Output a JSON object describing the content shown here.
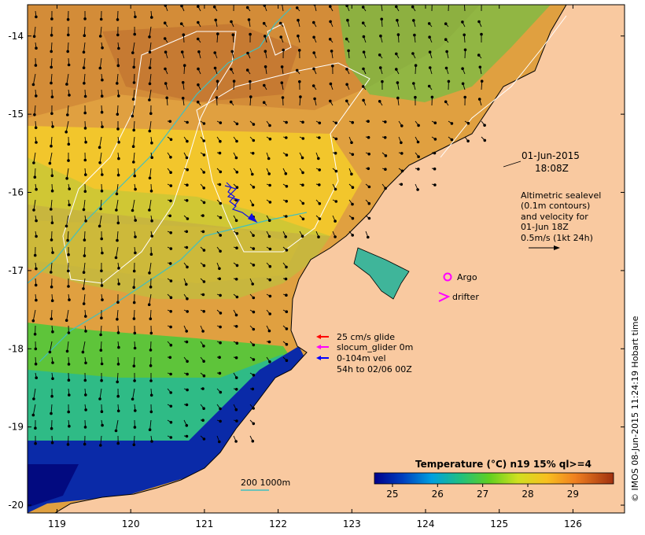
{
  "map": {
    "y_ticks": [
      "-14",
      "-15",
      "-16",
      "-17",
      "-18",
      "-19",
      "-20"
    ],
    "x_ticks": [
      "119",
      "120",
      "121",
      "122",
      "123",
      "124",
      "125",
      "126"
    ],
    "lon_range": [
      118.6,
      126.7
    ],
    "lat_range": [
      -20.1,
      -13.6
    ]
  },
  "date_label": {
    "line1": "01-Jun-2015",
    "line2": "18:08Z"
  },
  "altimetry": {
    "lines": [
      "Altimetric sealevel",
      "(0.1m contours)",
      "and velocity for",
      "01-Jun 18Z",
      "0.5m/s (1kt 24h)"
    ]
  },
  "markers": {
    "argo_label": "Argo",
    "drifter_label": "drifter"
  },
  "glider_legend": {
    "items": [
      {
        "label": "25 cm/s glide",
        "color": "#ff0000"
      },
      {
        "label": "slocum_glider 0m",
        "color": "#ff00ff"
      },
      {
        "label": "0-104m vel",
        "color": "#0000ff"
      }
    ],
    "note": "54h to 02/06 00Z"
  },
  "isobath": {
    "label": "200  1000m",
    "color": "#40c0c0"
  },
  "colorbar": {
    "title": "Temperature (°C) n19 15% ql>=4",
    "ticks": [
      "25",
      "26",
      "27",
      "28",
      "29"
    ],
    "range": [
      24.6,
      29.9
    ]
  },
  "credit": "© IMOS 08-Jun-2015 11:24:19 Hobart time",
  "colors": {
    "land": "#f9c9a0",
    "warm": "#cf8030",
    "mid": "#f0c030",
    "cool": "#40c040",
    "cold": "#0818a0"
  }
}
